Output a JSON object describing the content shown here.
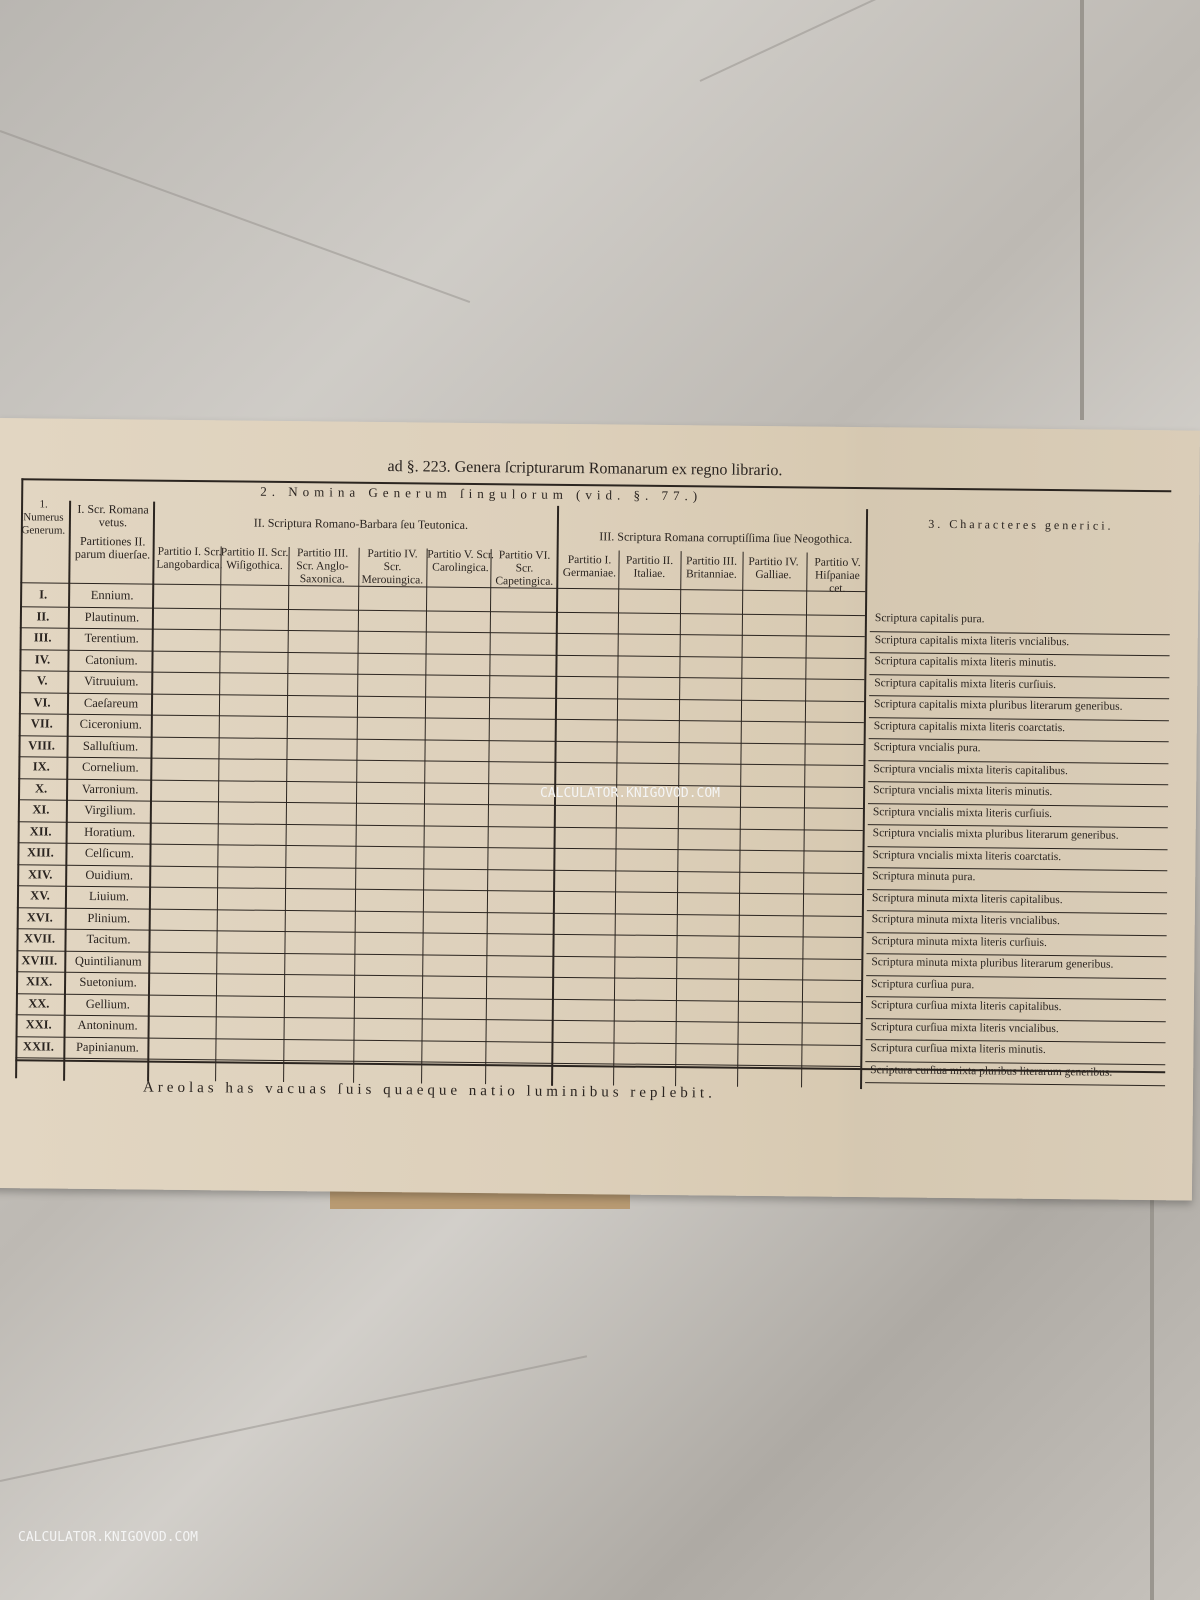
{
  "document": {
    "title": "ad §. 223. Genera ſcripturarum Romanarum ex regno librario.",
    "section2_heading": "2. Nomina Generum ſingulorum (vid. §. 77.)",
    "col1_header": "1. Numerus Generum.",
    "col_roman_vetus": "I. Scr. Romana vetus.",
    "col_partitiones": "Partitiones II. parum diuerſae.",
    "group2_header": "II. Scriptura Romano-Barbara ſeu Teutonica.",
    "group2_partitions": [
      "Partitio I. Scr. Langobardica.",
      "Partitio II. Scr. Wiſigothica.",
      "Partitio III. Scr. Anglo-Saxonica.",
      "Partitio IV. Scr. Merouingica.",
      "Partitio V. Scr. Carolingica.",
      "Partitio VI. Scr. Capetingica."
    ],
    "group3_header": "III. Scriptura Romana corruptiſſima ſiue Neogothica.",
    "group3_partitions": [
      "Partitio I. Germaniae.",
      "Partitio II. Italiae.",
      "Partitio III. Britanniae.",
      "Partitio IV. Galliae.",
      "Partitio V. Hiſpaniae cet."
    ],
    "col3_header": "3. Characteres generici.",
    "rows": [
      {
        "num": "I.",
        "name": "Ennium."
      },
      {
        "num": "II.",
        "name": "Plautinum."
      },
      {
        "num": "III.",
        "name": "Terentium."
      },
      {
        "num": "IV.",
        "name": "Catonium."
      },
      {
        "num": "V.",
        "name": "Vitruuium."
      },
      {
        "num": "VI.",
        "name": "Caeſareum"
      },
      {
        "num": "VII.",
        "name": "Ciceronium."
      },
      {
        "num": "VIII.",
        "name": "Salluſtium."
      },
      {
        "num": "IX.",
        "name": "Cornelium."
      },
      {
        "num": "X.",
        "name": "Varronium."
      },
      {
        "num": "XI.",
        "name": "Virgilium."
      },
      {
        "num": "XII.",
        "name": "Horatium."
      },
      {
        "num": "XIII.",
        "name": "Celſicum."
      },
      {
        "num": "XIV.",
        "name": "Ouidium."
      },
      {
        "num": "XV.",
        "name": "Liuium."
      },
      {
        "num": "XVI.",
        "name": "Plinium."
      },
      {
        "num": "XVII.",
        "name": "Tacitum."
      },
      {
        "num": "XVIII.",
        "name": "Quintilianum"
      },
      {
        "num": "XIX.",
        "name": "Suetonium."
      },
      {
        "num": "XX.",
        "name": "Gellium."
      },
      {
        "num": "XXI.",
        "name": "Antoninum."
      },
      {
        "num": "XXII.",
        "name": "Papinianum."
      }
    ],
    "characters": [
      "Scriptura capitalis pura.",
      "Scriptura capitalis mixta literis vncialibus.",
      "Scriptura capitalis mixta literis minutis.",
      "Scriptura capitalis mixta literis curſiuis.",
      "Scriptura capitalis mixta pluribus literarum generibus.",
      "Scriptura capitalis mixta literis coarctatis.",
      "Scriptura vncialis pura.",
      "Scriptura vncialis mixta literis capitalibus.",
      "Scriptura vncialis mixta literis minutis.",
      "Scriptura vncialis mixta literis curſiuis.",
      "Scriptura vncialis mixta pluribus literarum generibus.",
      "Scriptura vncialis mixta literis coarctatis.",
      "Scriptura minuta pura.",
      "Scriptura minuta mixta literis capitalibus.",
      "Scriptura minuta mixta literis vncialibus.",
      "Scriptura minuta mixta literis curſiuis.",
      "Scriptura minuta mixta pluribus literarum generibus.",
      "Scriptura curſiua pura.",
      "Scriptura curſiua mixta literis capitalibus.",
      "Scriptura curſiua mixta literis vncialibus.",
      "Scriptura curſiua mixta literis minutis.",
      "Scriptura curſiua mixta pluribus literarum generibus."
    ],
    "footer": "Areolas has vacuas ſuis quaeque natio luminibus replebit."
  },
  "watermarks": {
    "center": "CALCULATOR.KNIGOVOD.COM",
    "corner": "CALCULATOR.KNIGOVOD.COM"
  }
}
